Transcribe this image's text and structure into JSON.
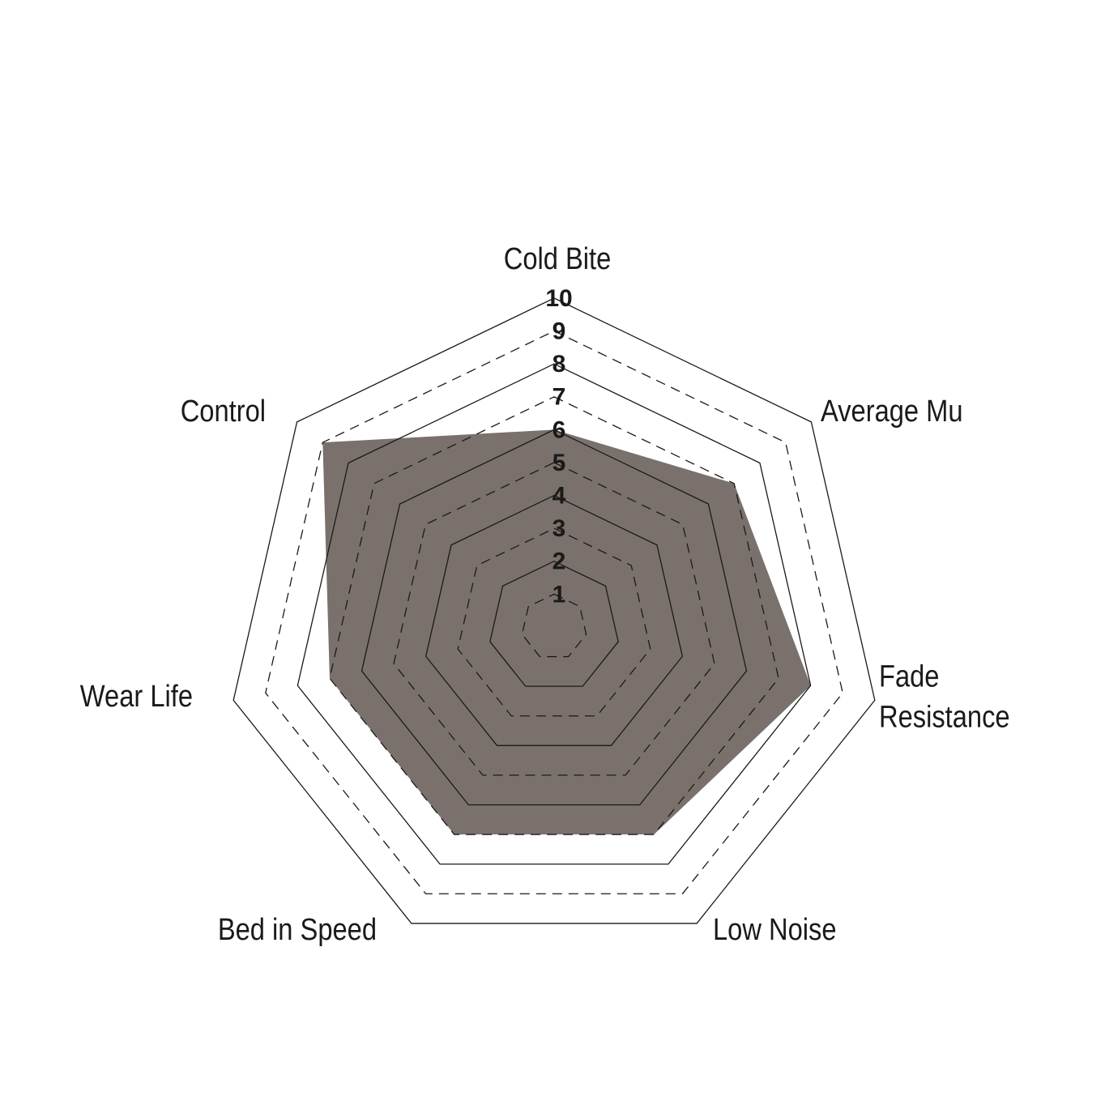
{
  "chart_data": {
    "type": "radar",
    "categories": [
      "Cold Bite",
      "Average Mu",
      "Fade Resistance",
      "Low Noise",
      "Bed in Speed",
      "Wear Life",
      "Control"
    ],
    "values": [
      6,
      7,
      8,
      7,
      7,
      7,
      9
    ],
    "color": "#7a716d",
    "ylim": [
      0,
      10
    ],
    "yticks": [
      1,
      2,
      3,
      4,
      5,
      6,
      7,
      8,
      9,
      10
    ]
  }
}
